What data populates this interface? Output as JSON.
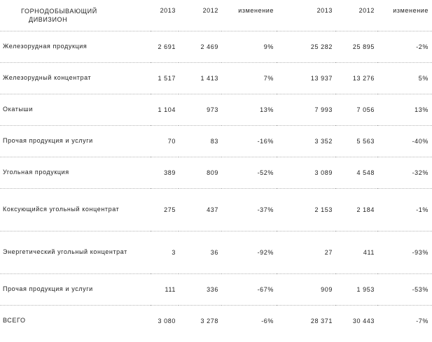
{
  "header": {
    "label_line1": "ГОРНОДОБЫВАЮЩИЙ",
    "label_line2": "ДИВИЗИОН",
    "columns": [
      "2013",
      "2012",
      "изменение",
      "2013",
      "2012",
      "изменение"
    ]
  },
  "rows": [
    {
      "label": "Железорудная продукция",
      "values": [
        "2 691",
        "2 469",
        "9%",
        "25 282",
        "25 895",
        "-2%"
      ]
    },
    {
      "label": "Железорудный концентрат",
      "values": [
        "1 517",
        "1 413",
        "7%",
        "13 937",
        "13 276",
        "5%"
      ]
    },
    {
      "label": "Окатыши",
      "values": [
        "1 104",
        "973",
        "13%",
        "7 993",
        "7 056",
        "13%"
      ]
    },
    {
      "label": "Прочая продукция и услуги",
      "values": [
        "70",
        "83",
        "-16%",
        "3 352",
        "5 563",
        "-40%"
      ]
    },
    {
      "label": "Угольная продукция",
      "values": [
        "389",
        "809",
        "-52%",
        "3 089",
        "4 548",
        "-32%"
      ]
    },
    {
      "label": "Коксующийся угольный концентрат",
      "values": [
        "275",
        "437",
        "-37%",
        "2 153",
        "2 184",
        "-1%"
      ]
    },
    {
      "label": "Энергетический угольный концентрат",
      "values": [
        "3",
        "36",
        "-92%",
        "27",
        "411",
        "-93%"
      ]
    },
    {
      "label": "Прочая продукция и услуги",
      "values": [
        "111",
        "336",
        "-67%",
        "909",
        "1 953",
        "-53%"
      ]
    },
    {
      "label": "ВСЕГО",
      "values": [
        "3 080",
        "3 278",
        "-6%",
        "28 371",
        "30 443",
        "-7%"
      ]
    }
  ]
}
